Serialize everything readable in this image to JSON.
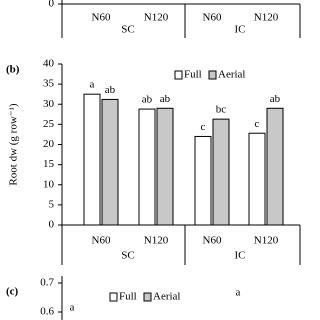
{
  "chart_data": [
    {
      "type": "bar",
      "categories": [
        "N60",
        "N120",
        "N60",
        "N120"
      ],
      "groups": [
        "SC",
        "IC"
      ],
      "yticks": [
        0
      ]
    },
    {
      "type": "bar",
      "panel": "(b)",
      "y_label": "Root dw (g row⁻¹)",
      "categories": [
        "N60",
        "N120",
        "N60",
        "N120"
      ],
      "groups": [
        "SC",
        "IC"
      ],
      "series": [
        {
          "name": "Full",
          "color": "#ffffff",
          "values": [
            32.5,
            28.8,
            22,
            22.8
          ],
          "letters": [
            "a",
            "ab",
            "c",
            "c"
          ]
        },
        {
          "name": "Aerial",
          "color": "#c8c8c8",
          "values": [
            31.2,
            29,
            26.3,
            29
          ],
          "letters": [
            "ab",
            "ab",
            "bc",
            "ab"
          ]
        }
      ],
      "ylim": [
        0,
        40
      ],
      "yticks": [
        0,
        5,
        10,
        15,
        20,
        25,
        30,
        35,
        40
      ],
      "legend": "top-right"
    },
    {
      "type": "bar",
      "panel": "(c)",
      "series": [
        {
          "name": "Full",
          "color": "#ffffff"
        },
        {
          "name": "Aerial",
          "color": "#c8c8c8"
        }
      ],
      "annotations": [
        "a",
        "a"
      ],
      "ylim": [
        0.6,
        0.7
      ],
      "yticks": [
        0.6,
        0.7
      ]
    }
  ]
}
